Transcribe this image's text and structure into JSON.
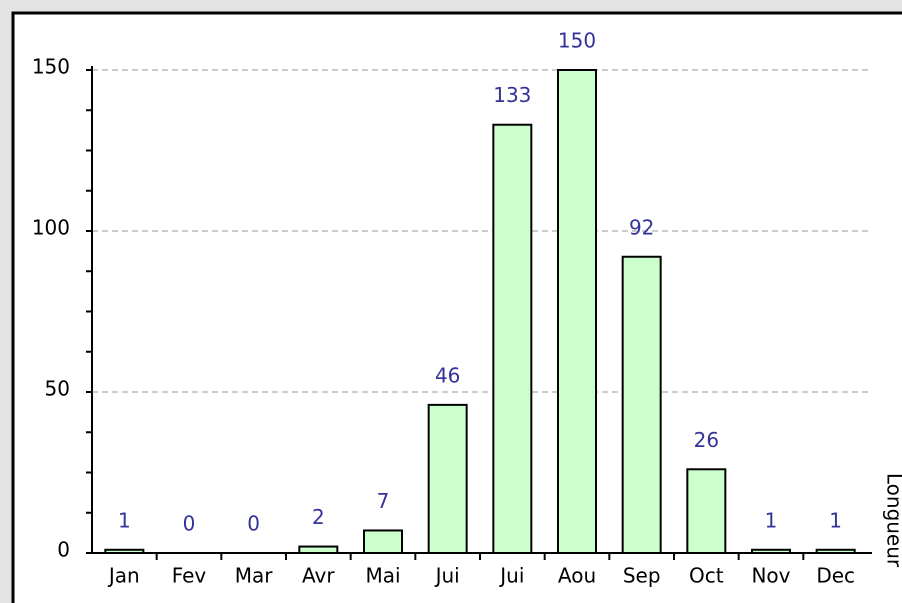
{
  "chart_data": {
    "type": "bar",
    "categories": [
      "Jan",
      "Fev",
      "Mar",
      "Avr",
      "Mai",
      "Jui",
      "Jui",
      "Aou",
      "Sep",
      "Oct",
      "Nov",
      "Dec"
    ],
    "values": [
      1,
      0,
      0,
      2,
      7,
      46,
      133,
      150,
      92,
      26,
      1,
      1
    ],
    "color": "#ccffcc",
    "label_color": "#333399",
    "ylim": [
      0,
      150
    ],
    "yticks": [
      0,
      50,
      100,
      150
    ],
    "grid": true,
    "side_label": "Longueur"
  }
}
